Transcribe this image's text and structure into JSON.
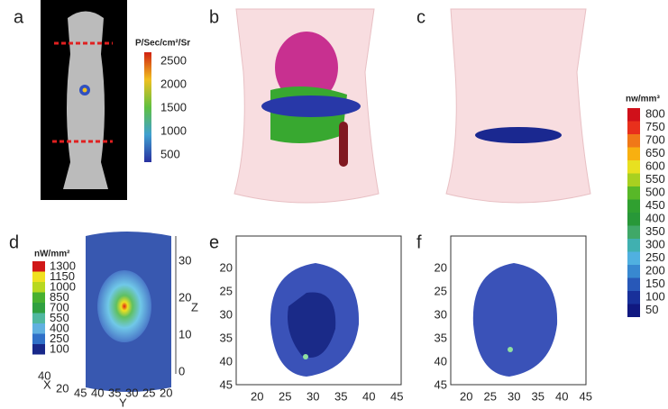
{
  "panel_labels": [
    "a",
    "b",
    "c",
    "d",
    "e",
    "f"
  ],
  "colorbar_a": {
    "title": "P/Sec/cm²/Sr",
    "ticks": [
      2500,
      2000,
      1500,
      1000,
      500
    ]
  },
  "colorbar_main": {
    "title": "nw/mm³",
    "ticks": [
      800,
      750,
      700,
      650,
      600,
      550,
      500,
      450,
      400,
      350,
      300,
      250,
      200,
      150,
      100,
      50
    ],
    "colors": [
      "#d0101a",
      "#e8301c",
      "#f07818",
      "#f8b010",
      "#e8e020",
      "#a8d020",
      "#58b828",
      "#30a030",
      "#289838",
      "#40a868",
      "#40b0b0",
      "#50b0e0",
      "#3888d0",
      "#2858b8",
      "#18309a",
      "#101880"
    ]
  },
  "panel_d": {
    "colorbar": {
      "title": "nW/mm²",
      "ticks": [
        1300,
        1150,
        1000,
        850,
        700,
        550,
        400,
        250,
        100
      ],
      "colors": [
        "#d01818",
        "#f0e020",
        "#b8d820",
        "#48b030",
        "#30a040",
        "#50b8a0",
        "#60b0e0",
        "#3070c8",
        "#18288a"
      ]
    },
    "z_ticks": [
      30,
      20,
      10,
      0
    ],
    "z_label": "Z",
    "x_ticks": [
      40,
      20
    ],
    "x_label": "X",
    "y_ticks": [
      45,
      40,
      35,
      30,
      25,
      20
    ],
    "y_label": "Y"
  },
  "panel_e": {
    "x_ticks": [
      20,
      25,
      30,
      35,
      40,
      45
    ],
    "y_ticks": [
      20,
      25,
      30,
      35,
      40,
      45
    ]
  },
  "panel_f": {
    "x_ticks": [
      20,
      25,
      30,
      35,
      40,
      45
    ],
    "y_ticks": [
      20,
      25,
      30,
      35,
      40,
      45
    ]
  }
}
